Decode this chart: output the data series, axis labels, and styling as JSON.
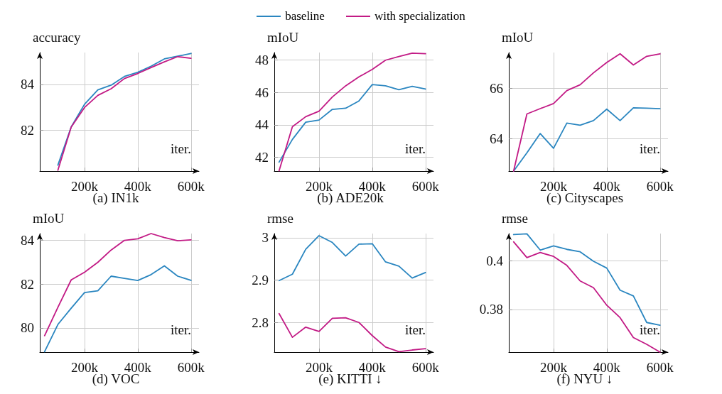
{
  "chart_data": [
    {
      "type": "line",
      "title": "(a) IN1k",
      "xlabel": "iter.",
      "ylabel": "accuracy",
      "legend": "top",
      "grid": true,
      "marker": "none",
      "line_style": "solid",
      "x": [
        100,
        150,
        200,
        250,
        300,
        350,
        400,
        450,
        500,
        550,
        600
      ],
      "xlim": [
        32,
        630
      ],
      "xticks": [
        {
          "value": 200,
          "label": "200k"
        },
        {
          "value": 400,
          "label": "400k"
        },
        {
          "value": 600,
          "label": "600k"
        }
      ],
      "ylim": [
        80.2,
        85.4
      ],
      "yticks": [
        82,
        84
      ],
      "series": [
        {
          "name": "baseline",
          "color": "#2a86c0",
          "values": [
            80.46,
            82.14,
            83.13,
            83.76,
            83.97,
            84.35,
            84.53,
            84.8,
            85.12,
            85.24,
            85.36
          ]
        },
        {
          "name": "with specialization",
          "color": "#c21a85",
          "values": [
            80.24,
            82.13,
            82.99,
            83.52,
            83.81,
            84.26,
            84.48,
            84.74,
            84.99,
            85.22,
            85.15
          ]
        }
      ]
    },
    {
      "type": "line",
      "title": "(b) ADE20k",
      "xlabel": "iter.",
      "ylabel": "mIoU",
      "grid": true,
      "marker": "none",
      "line_style": "solid",
      "x": [
        50,
        100,
        150,
        200,
        250,
        300,
        350,
        400,
        450,
        500,
        550,
        600
      ],
      "xlim": [
        32,
        630
      ],
      "xticks": [
        {
          "value": 200,
          "label": "200k"
        },
        {
          "value": 400,
          "label": "400k"
        },
        {
          "value": 600,
          "label": "600k"
        }
      ],
      "ylim": [
        41.15,
        48.45
      ],
      "yticks": [
        42,
        44,
        46,
        48
      ],
      "series": [
        {
          "color": "#2a86c0",
          "values": [
            41.7,
            43.1,
            44.16,
            44.29,
            44.95,
            45.02,
            45.47,
            46.48,
            46.4,
            46.16,
            46.37,
            46.2
          ]
        },
        {
          "color": "#c21a85",
          "values": [
            41.17,
            43.88,
            44.5,
            44.84,
            45.71,
            46.4,
            46.95,
            47.41,
            47.98,
            48.2,
            48.41,
            48.38
          ]
        }
      ]
    },
    {
      "type": "line",
      "title": "(c) Cityscapes",
      "xlabel": "iter.",
      "ylabel": "mIoU",
      "grid": true,
      "marker": "none",
      "line_style": "solid",
      "x": [
        50,
        100,
        150,
        200,
        250,
        300,
        350,
        400,
        450,
        500,
        550,
        600
      ],
      "xlim": [
        32,
        630
      ],
      "xticks": [
        {
          "value": 200,
          "label": "200k"
        },
        {
          "value": 400,
          "label": "400k"
        },
        {
          "value": 600,
          "label": "600k"
        }
      ],
      "ylim": [
        62.73,
        67.4
      ],
      "yticks": [
        64,
        66
      ],
      "series": [
        {
          "color": "#2a86c0",
          "values": [
            62.73,
            63.45,
            64.21,
            63.63,
            64.62,
            64.54,
            64.72,
            65.17,
            64.72,
            65.22,
            65.21,
            65.19
          ]
        },
        {
          "color": "#c21a85",
          "values": [
            62.73,
            64.98,
            65.19,
            65.39,
            65.9,
            66.13,
            66.6,
            67.01,
            67.35,
            66.91,
            67.25,
            67.35
          ]
        }
      ]
    },
    {
      "type": "line",
      "title": "(d) VOC",
      "xlabel": "iter.",
      "ylabel": "mIoU",
      "grid": true,
      "marker": "none",
      "line_style": "solid",
      "x": [
        50,
        100,
        150,
        200,
        250,
        300,
        350,
        400,
        450,
        500,
        550,
        600
      ],
      "xlim": [
        32,
        630
      ],
      "xticks": [
        {
          "value": 200,
          "label": "200k"
        },
        {
          "value": 400,
          "label": "400k"
        },
        {
          "value": 600,
          "label": "600k"
        }
      ],
      "ylim": [
        78.9,
        84.3
      ],
      "yticks": [
        80,
        82,
        84
      ],
      "series": [
        {
          "color": "#2a86c0",
          "values": [
            78.92,
            80.16,
            80.9,
            81.61,
            81.69,
            82.36,
            82.26,
            82.16,
            82.43,
            82.83,
            82.36,
            82.17
          ]
        },
        {
          "color": "#c21a85",
          "values": [
            79.65,
            80.94,
            82.19,
            82.54,
            82.99,
            83.55,
            83.99,
            84.06,
            84.3,
            84.12,
            83.97,
            84.01
          ]
        }
      ]
    },
    {
      "type": "line",
      "title": "(e) KITTI ↓",
      "xlabel": "iter.",
      "ylabel": "rmse",
      "grid": true,
      "marker": "none",
      "line_style": "solid",
      "x": [
        50,
        100,
        150,
        200,
        250,
        300,
        350,
        400,
        450,
        500,
        550,
        600
      ],
      "xlim": [
        32,
        630
      ],
      "xticks": [
        {
          "value": 200,
          "label": "200k"
        },
        {
          "value": 400,
          "label": "400k"
        },
        {
          "value": 600,
          "label": "600k"
        }
      ],
      "ylim": [
        2.73,
        3.01
      ],
      "yticks": [
        2.8,
        2.9,
        3
      ],
      "series": [
        {
          "color": "#2a86c0",
          "values": [
            2.899,
            2.914,
            2.973,
            3.005,
            2.989,
            2.957,
            2.985,
            2.986,
            2.943,
            2.933,
            2.905,
            2.918
          ]
        },
        {
          "color": "#c21a85",
          "values": [
            2.821,
            2.765,
            2.789,
            2.779,
            2.81,
            2.811,
            2.8,
            2.769,
            2.742,
            2.731,
            2.735,
            2.738
          ]
        }
      ]
    },
    {
      "type": "line",
      "title": "(f) NYU ↓",
      "xlabel": "iter.",
      "ylabel": "rmse",
      "grid": true,
      "marker": "none",
      "line_style": "solid",
      "x": [
        50,
        100,
        150,
        200,
        250,
        300,
        350,
        400,
        450,
        500,
        550,
        600
      ],
      "xlim": [
        32,
        630
      ],
      "xticks": [
        {
          "value": 200,
          "label": "200k"
        },
        {
          "value": 400,
          "label": "400k"
        },
        {
          "value": 600,
          "label": "600k"
        }
      ],
      "ylim": [
        0.3624,
        0.4112
      ],
      "yticks": [
        0.38,
        0.4
      ],
      "series": [
        {
          "color": "#2a86c0",
          "values": [
            0.4108,
            0.4111,
            0.4044,
            0.4061,
            0.4047,
            0.4037,
            0.3998,
            0.397,
            0.3879,
            0.3855,
            0.3746,
            0.3735
          ]
        },
        {
          "color": "#c21a85",
          "values": [
            0.4078,
            0.4013,
            0.4034,
            0.4018,
            0.3981,
            0.3917,
            0.3889,
            0.3817,
            0.3766,
            0.3684,
            0.3656,
            0.3624
          ]
        }
      ]
    }
  ]
}
